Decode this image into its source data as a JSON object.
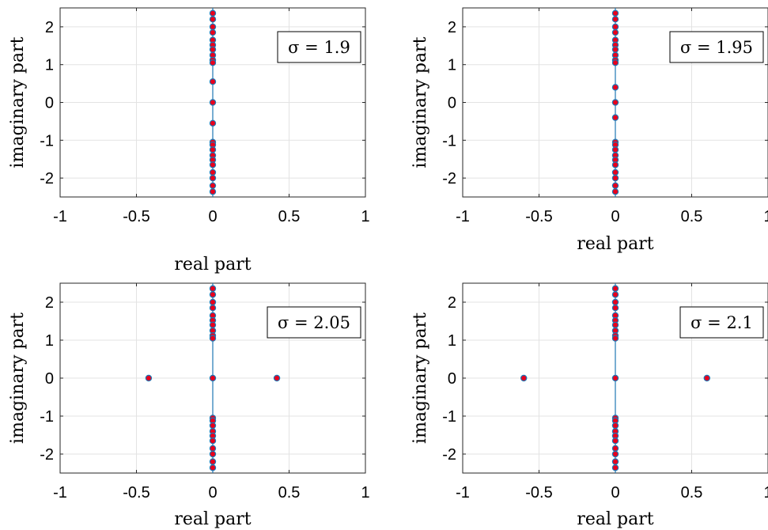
{
  "chart_data": [
    {
      "type": "scatter",
      "xlabel": "real part",
      "ylabel": "imaginary part",
      "xlim": [
        -1,
        1
      ],
      "ylim": [
        -2.5,
        2.5
      ],
      "xticks": [
        "-1",
        "-0.5",
        "0",
        "0.5",
        "1"
      ],
      "yticks": [
        "-2",
        "-1",
        "0",
        "1",
        "2"
      ],
      "grid": true,
      "annotation": "σ = 1.9",
      "annotation_position": "top-right",
      "marker": {
        "face": "#e8001c",
        "edge": "#1f77b4"
      },
      "points": [
        [
          0,
          2.36
        ],
        [
          0,
          2.2
        ],
        [
          0,
          2.0
        ],
        [
          0,
          1.85
        ],
        [
          0,
          1.65
        ],
        [
          0,
          1.52
        ],
        [
          0,
          1.4
        ],
        [
          0,
          1.25
        ],
        [
          0,
          1.12
        ],
        [
          0,
          1.05
        ],
        [
          0,
          0.55
        ],
        [
          0,
          0
        ],
        [
          0,
          -0.55
        ],
        [
          0,
          -1.05
        ],
        [
          0,
          -1.12
        ],
        [
          0,
          -1.25
        ],
        [
          0,
          -1.4
        ],
        [
          0,
          -1.52
        ],
        [
          0,
          -1.65
        ],
        [
          0,
          -1.85
        ],
        [
          0,
          -2.0
        ],
        [
          0,
          -2.2
        ],
        [
          0,
          -2.36
        ]
      ]
    },
    {
      "type": "scatter",
      "xlabel": "real part",
      "ylabel": "imaginary part",
      "xlim": [
        -1,
        1
      ],
      "ylim": [
        -2.5,
        2.5
      ],
      "xticks": [
        "-1",
        "-0.5",
        "0",
        "0.5",
        "1"
      ],
      "yticks": [
        "-2",
        "-1",
        "0",
        "1",
        "2"
      ],
      "grid": true,
      "annotation": "σ = 1.95",
      "annotation_position": "top-right",
      "marker": {
        "face": "#e8001c",
        "edge": "#1f77b4"
      },
      "points": [
        [
          0,
          2.36
        ],
        [
          0,
          2.2
        ],
        [
          0,
          2.0
        ],
        [
          0,
          1.85
        ],
        [
          0,
          1.65
        ],
        [
          0,
          1.52
        ],
        [
          0,
          1.4
        ],
        [
          0,
          1.25
        ],
        [
          0,
          1.12
        ],
        [
          0,
          1.05
        ],
        [
          0,
          0.4
        ],
        [
          0,
          0
        ],
        [
          0,
          -0.4
        ],
        [
          0,
          -1.05
        ],
        [
          0,
          -1.12
        ],
        [
          0,
          -1.25
        ],
        [
          0,
          -1.4
        ],
        [
          0,
          -1.52
        ],
        [
          0,
          -1.65
        ],
        [
          0,
          -1.85
        ],
        [
          0,
          -2.0
        ],
        [
          0,
          -2.2
        ],
        [
          0,
          -2.36
        ]
      ]
    },
    {
      "type": "scatter",
      "xlabel": "real part",
      "ylabel": "imaginary part",
      "xlim": [
        -1,
        1
      ],
      "ylim": [
        -2.5,
        2.5
      ],
      "xticks": [
        "-1",
        "-0.5",
        "0",
        "0.5",
        "1"
      ],
      "yticks": [
        "-2",
        "-1",
        "0",
        "1",
        "2"
      ],
      "grid": true,
      "annotation": "σ = 2.05",
      "annotation_position": "top-right",
      "marker": {
        "face": "#e8001c",
        "edge": "#1f77b4"
      },
      "points": [
        [
          0,
          2.36
        ],
        [
          0,
          2.2
        ],
        [
          0,
          2.0
        ],
        [
          0,
          1.85
        ],
        [
          0,
          1.65
        ],
        [
          0,
          1.52
        ],
        [
          0,
          1.4
        ],
        [
          0,
          1.25
        ],
        [
          0,
          1.12
        ],
        [
          0,
          1.05
        ],
        [
          -0.42,
          0
        ],
        [
          0,
          0
        ],
        [
          0.42,
          0
        ],
        [
          0,
          -1.05
        ],
        [
          0,
          -1.12
        ],
        [
          0,
          -1.25
        ],
        [
          0,
          -1.4
        ],
        [
          0,
          -1.52
        ],
        [
          0,
          -1.65
        ],
        [
          0,
          -1.85
        ],
        [
          0,
          -2.0
        ],
        [
          0,
          -2.2
        ],
        [
          0,
          -2.36
        ]
      ]
    },
    {
      "type": "scatter",
      "xlabel": "real part",
      "ylabel": "imaginary part",
      "xlim": [
        -1,
        1
      ],
      "ylim": [
        -2.5,
        2.5
      ],
      "xticks": [
        "-1",
        "-0.5",
        "0",
        "0.5",
        "1"
      ],
      "yticks": [
        "-2",
        "-1",
        "0",
        "1",
        "2"
      ],
      "grid": true,
      "annotation": "σ = 2.1",
      "annotation_position": "top-right",
      "marker": {
        "face": "#e8001c",
        "edge": "#1f77b4"
      },
      "points": [
        [
          0,
          2.36
        ],
        [
          0,
          2.2
        ],
        [
          0,
          2.0
        ],
        [
          0,
          1.85
        ],
        [
          0,
          1.65
        ],
        [
          0,
          1.52
        ],
        [
          0,
          1.4
        ],
        [
          0,
          1.25
        ],
        [
          0,
          1.12
        ],
        [
          0,
          1.05
        ],
        [
          -0.6,
          0
        ],
        [
          0,
          0
        ],
        [
          0.6,
          0
        ],
        [
          0,
          -1.05
        ],
        [
          0,
          -1.12
        ],
        [
          0,
          -1.25
        ],
        [
          0,
          -1.4
        ],
        [
          0,
          -1.52
        ],
        [
          0,
          -1.65
        ],
        [
          0,
          -1.85
        ],
        [
          0,
          -2.0
        ],
        [
          0,
          -2.2
        ],
        [
          0,
          -2.36
        ]
      ]
    }
  ]
}
